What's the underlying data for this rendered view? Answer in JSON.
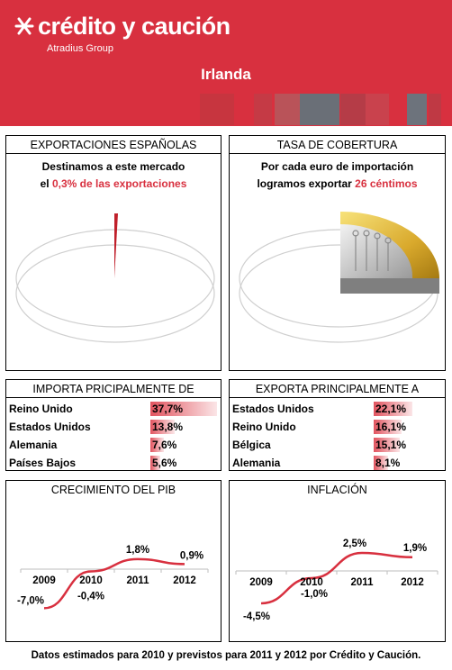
{
  "header": {
    "brand": "crédito y caución",
    "group": "Atradius Group",
    "country": "Irlanda",
    "color": "#d8303f"
  },
  "exports_panel": {
    "title": "EXPORTACIONES ESPAÑOLAS",
    "line1": "Destinamos a este mercado",
    "line2_prefix": "el ",
    "line2_highlight": "0,3% de las exportaciones",
    "share_percent": 0.3
  },
  "coverage_panel": {
    "title": "TASA DE COBERTURA",
    "line1": "Por cada euro de importación",
    "line2_prefix": "logramos exportar ",
    "line2_highlight": "26 céntimos",
    "cents": 26,
    "icon": "euro-coin-icon"
  },
  "imports": {
    "title": "IMPORTA PRICIPALMENTE DE",
    "items": [
      {
        "country": "Reino Unido",
        "value": "37,7%",
        "pct": 37.7
      },
      {
        "country": "Estados Unidos",
        "value": "13,8%",
        "pct": 13.8
      },
      {
        "country": "Alemania",
        "value": "7,6%",
        "pct": 7.6
      },
      {
        "country": "Países Bajos",
        "value": "5,6%",
        "pct": 5.6
      }
    ]
  },
  "exports": {
    "title": "EXPORTA  PRINCIPALMENTE A",
    "items": [
      {
        "country": "Estados Unidos",
        "value": "22,1%",
        "pct": 22.1
      },
      {
        "country": "Reino Unido",
        "value": "16,1%",
        "pct": 16.1
      },
      {
        "country": "Bélgica",
        "value": "15,1%",
        "pct": 15.1
      },
      {
        "country": "Alemania",
        "value": "8,1%",
        "pct": 8.1
      }
    ]
  },
  "chart_data": [
    {
      "type": "line",
      "title": "CRECIMIENTO DEL PIB",
      "categories": [
        "2009",
        "2010",
        "2011",
        "2012"
      ],
      "values": [
        -7.0,
        -0.4,
        1.8,
        0.9
      ],
      "labels": [
        "-7,0%",
        "-0,4%",
        "1,8%",
        "0,9%"
      ],
      "color": "#d8303f",
      "ylim": [
        -8,
        3
      ]
    },
    {
      "type": "line",
      "title": "INFLACIÓN",
      "categories": [
        "2009",
        "2010",
        "2011",
        "2012"
      ],
      "values": [
        -4.5,
        -1.0,
        2.5,
        1.9
      ],
      "labels": [
        "-4,5%",
        "-1,0%",
        "2,5%",
        "1,9%"
      ],
      "color": "#d8303f",
      "ylim": [
        -5.5,
        3.5
      ]
    }
  ],
  "footer": "Datos estimados para 2010 y previstos para 2011  y 2012 por Crédito y Caución."
}
